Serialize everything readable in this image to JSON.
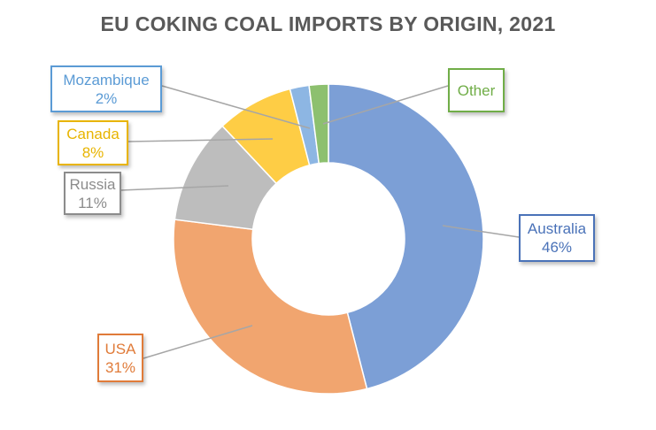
{
  "chart_data": {
    "type": "pie",
    "variant": "donut",
    "title": "EU COKING COAL IMPORTS BY ORIGIN, 2021",
    "slices": [
      {
        "label": "Australia",
        "value": 46,
        "display": "46%",
        "color": "#7c9fd6",
        "text_color": "#4a72b8"
      },
      {
        "label": "USA",
        "value": 31,
        "display": "31%",
        "color": "#f1a56f",
        "text_color": "#e07b39"
      },
      {
        "label": "Russia",
        "value": 11,
        "display": "11%",
        "color": "#bdbdbd",
        "text_color": "#8c8c8c"
      },
      {
        "label": "Canada",
        "value": 8,
        "display": "8%",
        "color": "#fecd45",
        "text_color": "#e8b400"
      },
      {
        "label": "Mozambique",
        "value": 2,
        "display": "2%",
        "color": "#8db6e3",
        "text_color": "#5b9bd5"
      },
      {
        "label": "Other",
        "value": 2,
        "display": "",
        "color": "#8dc06f",
        "text_color": "#70ad47"
      }
    ],
    "start_angle": "12 o'clock",
    "direction": "clockwise",
    "legend": "none"
  }
}
